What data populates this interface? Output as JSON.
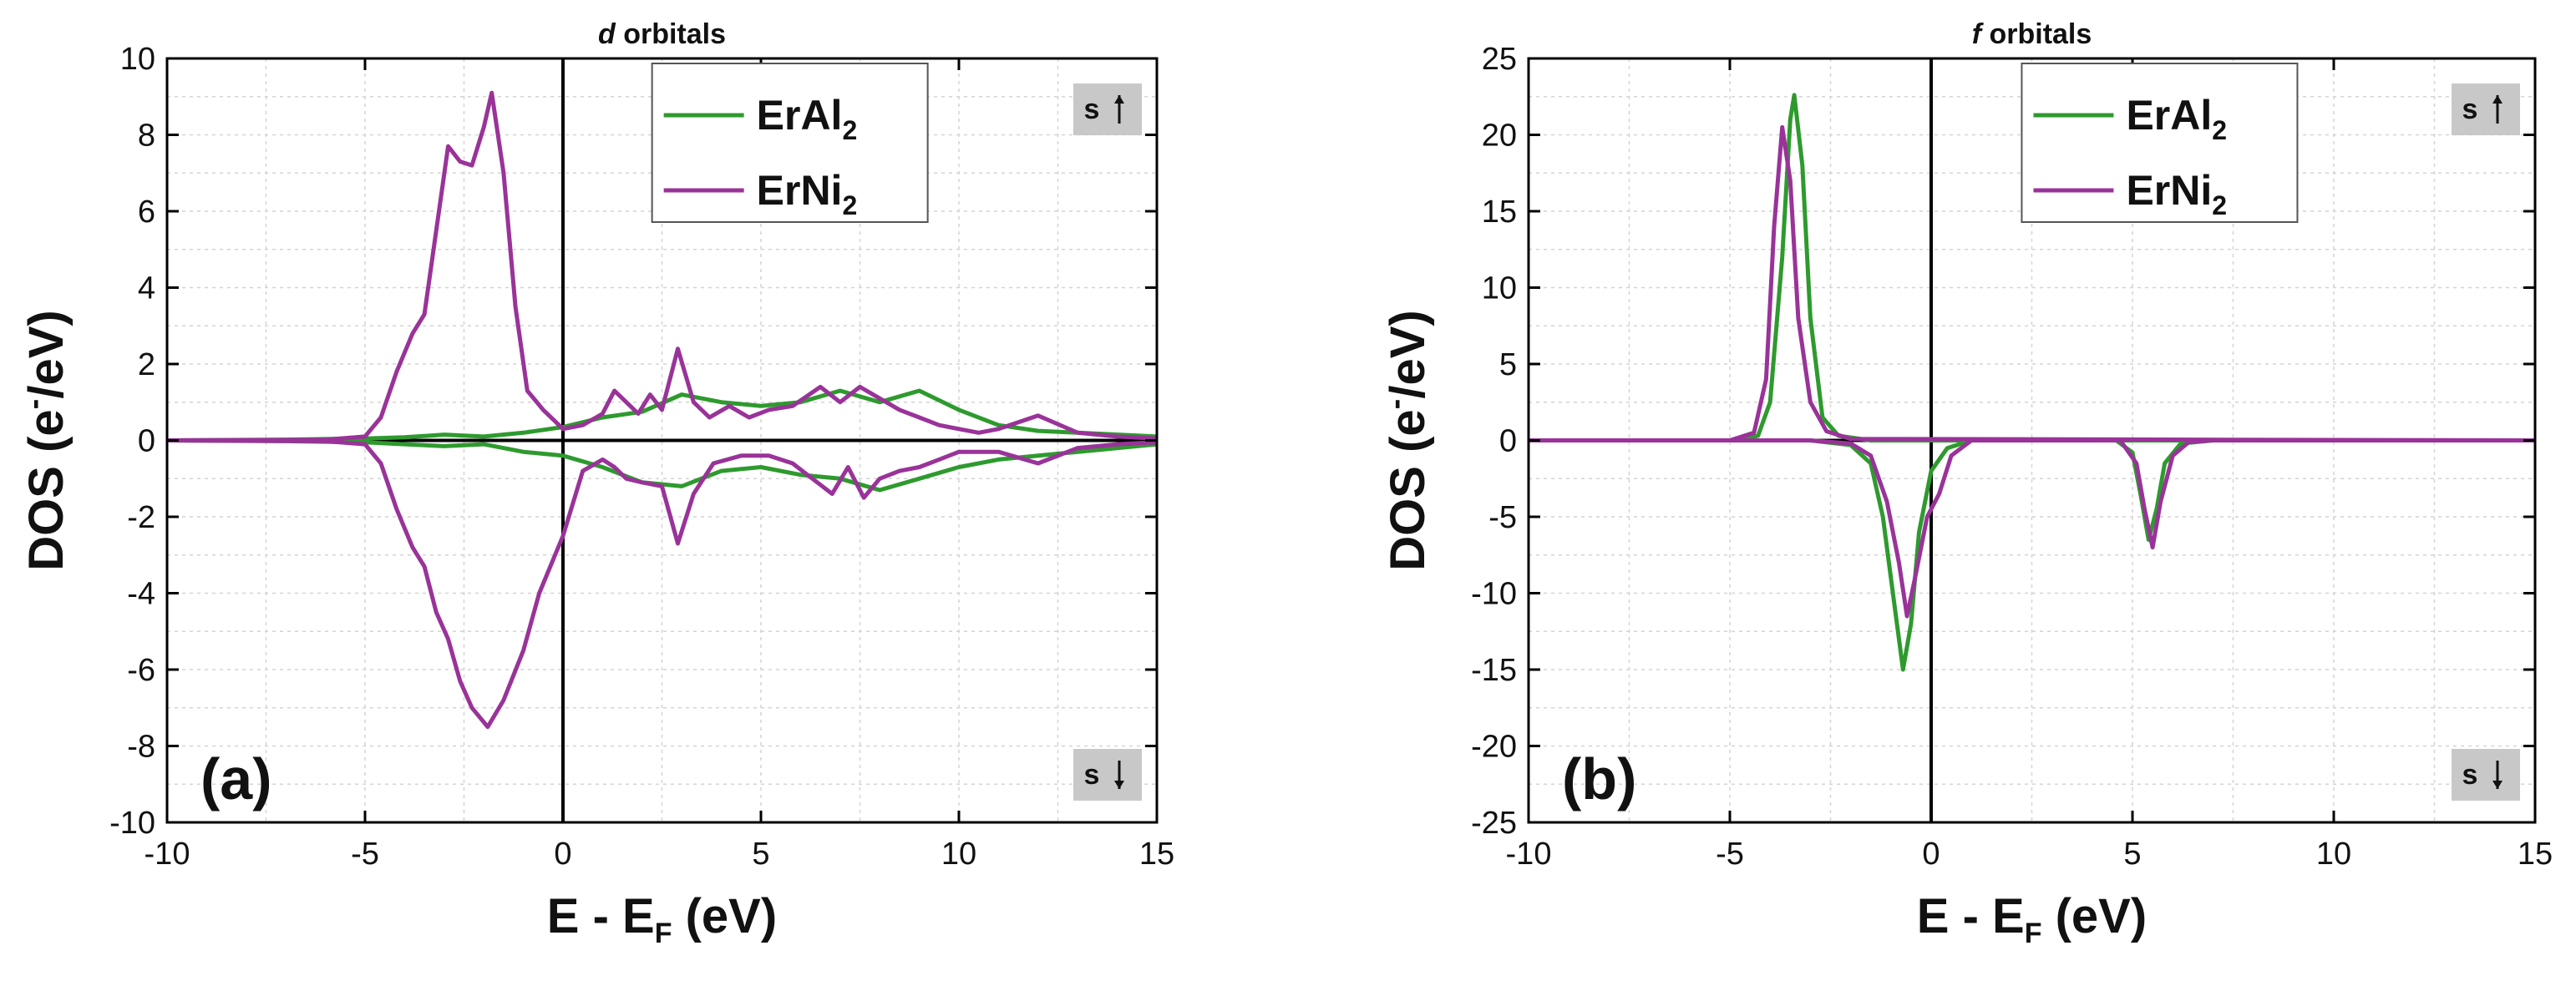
{
  "chart_data": [
    {
      "type": "line",
      "title_italic": "d",
      "title_rest": " orbitals",
      "panel_label": "(a)",
      "xlabel_main": "E - E",
      "xlabel_sub": "F",
      "xlabel_tail": " (eV)",
      "ylabel_main": "DOS (e",
      "ylabel_sup": "-",
      "ylabel_tail": "/eV)",
      "xlim": [
        -10,
        15
      ],
      "ylim": [
        -10,
        10
      ],
      "xticks": [
        -10,
        -5,
        0,
        5,
        10,
        15
      ],
      "yticks": [
        -10,
        -8,
        -6,
        -4,
        -2,
        0,
        2,
        4,
        6,
        8,
        10
      ],
      "grid": true,
      "legend_position": "top-center",
      "spin_up_label": "s",
      "spin_down_label": "s",
      "series": [
        {
          "name": "ErAl",
          "name_sub": "2",
          "color": "#2e9a2e",
          "spin_up": [
            [
              -10,
              0
            ],
            [
              -7,
              0.02
            ],
            [
              -5,
              0.05
            ],
            [
              -4,
              0.08
            ],
            [
              -3,
              0.15
            ],
            [
              -2,
              0.1
            ],
            [
              -1,
              0.2
            ],
            [
              0,
              0.35
            ],
            [
              1,
              0.6
            ],
            [
              2,
              0.75
            ],
            [
              3,
              1.2
            ],
            [
              4,
              1.0
            ],
            [
              5,
              0.9
            ],
            [
              6,
              1.0
            ],
            [
              7,
              1.3
            ],
            [
              8,
              1.0
            ],
            [
              9,
              1.3
            ],
            [
              10,
              0.8
            ],
            [
              11,
              0.4
            ],
            [
              12,
              0.25
            ],
            [
              13,
              0.2
            ],
            [
              15,
              0.1
            ]
          ],
          "spin_down": [
            [
              -10,
              0
            ],
            [
              -7,
              -0.02
            ],
            [
              -5,
              -0.05
            ],
            [
              -4,
              -0.1
            ],
            [
              -3,
              -0.15
            ],
            [
              -2,
              -0.1
            ],
            [
              -1,
              -0.3
            ],
            [
              0,
              -0.4
            ],
            [
              1,
              -0.7
            ],
            [
              2,
              -1.1
            ],
            [
              3,
              -1.2
            ],
            [
              4,
              -0.8
            ],
            [
              5,
              -0.7
            ],
            [
              6,
              -0.9
            ],
            [
              7,
              -1.0
            ],
            [
              8,
              -1.3
            ],
            [
              9,
              -1.0
            ],
            [
              10,
              -0.7
            ],
            [
              11,
              -0.5
            ],
            [
              12,
              -0.4
            ],
            [
              13,
              -0.3
            ],
            [
              15,
              -0.1
            ]
          ]
        },
        {
          "name": "ErNi",
          "name_sub": "2",
          "color": "#993399",
          "spin_up": [
            [
              -10,
              0
            ],
            [
              -6,
              0.02
            ],
            [
              -5,
              0.1
            ],
            [
              -4.6,
              0.6
            ],
            [
              -4.2,
              1.8
            ],
            [
              -3.8,
              2.8
            ],
            [
              -3.5,
              3.3
            ],
            [
              -3.2,
              5.5
            ],
            [
              -2.9,
              7.7
            ],
            [
              -2.6,
              7.3
            ],
            [
              -2.3,
              7.2
            ],
            [
              -2.0,
              8.2
            ],
            [
              -1.8,
              9.1
            ],
            [
              -1.5,
              7.0
            ],
            [
              -1.2,
              3.5
            ],
            [
              -0.9,
              1.3
            ],
            [
              -0.5,
              0.8
            ],
            [
              -0.2,
              0.5
            ],
            [
              0,
              0.3
            ],
            [
              0.5,
              0.4
            ],
            [
              1.0,
              0.7
            ],
            [
              1.3,
              1.3
            ],
            [
              1.6,
              1.0
            ],
            [
              1.9,
              0.7
            ],
            [
              2.2,
              1.2
            ],
            [
              2.5,
              0.8
            ],
            [
              2.9,
              2.4
            ],
            [
              3.3,
              1.0
            ],
            [
              3.7,
              0.6
            ],
            [
              4.2,
              0.9
            ],
            [
              4.7,
              0.6
            ],
            [
              5.2,
              0.8
            ],
            [
              5.8,
              0.9
            ],
            [
              6.5,
              1.4
            ],
            [
              7.0,
              1.0
            ],
            [
              7.5,
              1.4
            ],
            [
              8.0,
              1.1
            ],
            [
              8.5,
              0.8
            ],
            [
              9.0,
              0.6
            ],
            [
              9.5,
              0.4
            ],
            [
              10,
              0.3
            ],
            [
              10.5,
              0.2
            ],
            [
              11,
              0.3
            ],
            [
              12,
              0.65
            ],
            [
              13,
              0.2
            ],
            [
              14,
              0.1
            ],
            [
              15,
              0.05
            ]
          ],
          "spin_down": [
            [
              -10,
              0
            ],
            [
              -6,
              -0.02
            ],
            [
              -5,
              -0.1
            ],
            [
              -4.6,
              -0.6
            ],
            [
              -4.2,
              -1.8
            ],
            [
              -3.8,
              -2.8
            ],
            [
              -3.5,
              -3.3
            ],
            [
              -3.2,
              -4.5
            ],
            [
              -2.9,
              -5.2
            ],
            [
              -2.6,
              -6.3
            ],
            [
              -2.3,
              -7.0
            ],
            [
              -1.9,
              -7.5
            ],
            [
              -1.5,
              -6.8
            ],
            [
              -1.0,
              -5.5
            ],
            [
              -0.6,
              -4.0
            ],
            [
              -0.2,
              -3.0
            ],
            [
              0,
              -2.5
            ],
            [
              0.5,
              -0.8
            ],
            [
              1.0,
              -0.5
            ],
            [
              1.3,
              -0.7
            ],
            [
              1.6,
              -1.0
            ],
            [
              2.0,
              -1.1
            ],
            [
              2.5,
              -1.2
            ],
            [
              2.9,
              -2.7
            ],
            [
              3.3,
              -1.4
            ],
            [
              3.8,
              -0.6
            ],
            [
              4.5,
              -0.4
            ],
            [
              5.2,
              -0.4
            ],
            [
              5.8,
              -0.6
            ],
            [
              6.3,
              -1.0
            ],
            [
              6.8,
              -1.4
            ],
            [
              7.2,
              -0.7
            ],
            [
              7.6,
              -1.5
            ],
            [
              8.0,
              -1.0
            ],
            [
              8.5,
              -0.8
            ],
            [
              9.0,
              -0.7
            ],
            [
              9.5,
              -0.5
            ],
            [
              10,
              -0.3
            ],
            [
              11,
              -0.3
            ],
            [
              12,
              -0.6
            ],
            [
              13,
              -0.2
            ],
            [
              14,
              -0.1
            ],
            [
              15,
              -0.05
            ]
          ]
        }
      ]
    },
    {
      "type": "line",
      "title_italic": "f",
      "title_rest": " orbitals",
      "panel_label": "(b)",
      "xlabel_main": "E - E",
      "xlabel_sub": "F",
      "xlabel_tail": " (eV)",
      "ylabel_main": "DOS (e",
      "ylabel_sup": "-",
      "ylabel_tail": "/eV)",
      "xlim": [
        -10,
        15
      ],
      "ylim": [
        -25,
        25
      ],
      "xticks": [
        -10,
        -5,
        0,
        5,
        10,
        15
      ],
      "yticks": [
        -25,
        -20,
        -15,
        -10,
        -5,
        0,
        5,
        10,
        15,
        20,
        25
      ],
      "grid": true,
      "legend_position": "top-center",
      "spin_up_label": "s",
      "spin_down_label": "s",
      "series": [
        {
          "name": "ErAl",
          "name_sub": "2",
          "color": "#2e9a2e",
          "spin_up": [
            [
              -10,
              0
            ],
            [
              -5,
              0
            ],
            [
              -4.3,
              0.3
            ],
            [
              -4.0,
              2.5
            ],
            [
              -3.7,
              12.0
            ],
            [
              -3.5,
              21.0
            ],
            [
              -3.4,
              22.6
            ],
            [
              -3.2,
              18.0
            ],
            [
              -3.0,
              8.0
            ],
            [
              -2.7,
              1.5
            ],
            [
              -2.3,
              0.3
            ],
            [
              -1.5,
              0
            ],
            [
              15,
              0
            ]
          ],
          "spin_down": [
            [
              -10,
              0
            ],
            [
              -3,
              0
            ],
            [
              -2,
              -0.3
            ],
            [
              -1.5,
              -1.5
            ],
            [
              -1.2,
              -5.0
            ],
            [
              -0.9,
              -11.0
            ],
            [
              -0.7,
              -15.0
            ],
            [
              -0.5,
              -12.0
            ],
            [
              -0.3,
              -6.0
            ],
            [
              0,
              -2.0
            ],
            [
              0.4,
              -0.5
            ],
            [
              1,
              0
            ],
            [
              4.6,
              0
            ],
            [
              5.0,
              -0.8
            ],
            [
              5.2,
              -3.5
            ],
            [
              5.4,
              -6.5
            ],
            [
              5.6,
              -4.5
            ],
            [
              5.8,
              -1.5
            ],
            [
              6.2,
              -0.2
            ],
            [
              7,
              0
            ],
            [
              15,
              0
            ]
          ]
        },
        {
          "name": "ErNi",
          "name_sub": "2",
          "color": "#993399",
          "spin_up": [
            [
              -10,
              0
            ],
            [
              -5,
              0
            ],
            [
              -4.4,
              0.5
            ],
            [
              -4.1,
              4.0
            ],
            [
              -3.9,
              14.0
            ],
            [
              -3.7,
              20.5
            ],
            [
              -3.5,
              17.0
            ],
            [
              -3.3,
              8.0
            ],
            [
              -3.0,
              2.5
            ],
            [
              -2.6,
              0.6
            ],
            [
              -2.0,
              0.1
            ],
            [
              15,
              0
            ]
          ],
          "spin_down": [
            [
              -10,
              0
            ],
            [
              -3,
              0
            ],
            [
              -2,
              -0.2
            ],
            [
              -1.5,
              -1.0
            ],
            [
              -1.1,
              -4.0
            ],
            [
              -0.8,
              -8.0
            ],
            [
              -0.6,
              -11.5
            ],
            [
              -0.4,
              -9.0
            ],
            [
              -0.1,
              -5.0
            ],
            [
              0.2,
              -3.5
            ],
            [
              0.5,
              -1.0
            ],
            [
              1,
              0
            ],
            [
              4.7,
              0
            ],
            [
              5.1,
              -1.5
            ],
            [
              5.3,
              -4.5
            ],
            [
              5.5,
              -7.0
            ],
            [
              5.7,
              -4.0
            ],
            [
              6.0,
              -1.0
            ],
            [
              6.4,
              -0.1
            ],
            [
              7,
              0
            ],
            [
              15,
              0
            ]
          ]
        }
      ]
    }
  ]
}
